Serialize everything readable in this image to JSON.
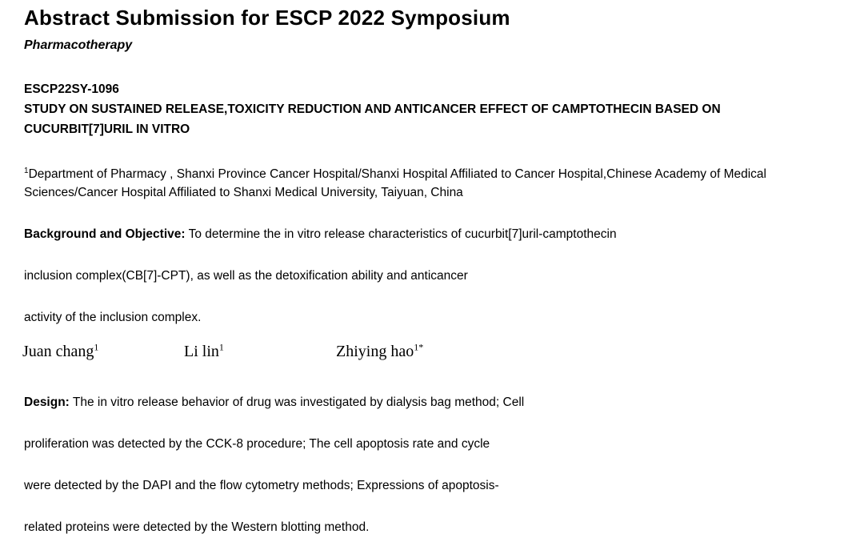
{
  "header": {
    "title": "Abstract Submission for ESCP 2022 Symposium",
    "track": "Pharmacotherapy"
  },
  "abstract": {
    "id": "ESCP22SY-1096",
    "title": "STUDY ON SUSTAINED RELEASE,TOXICITY REDUCTION AND ANTICANCER EFFECT OF CAMPTOTHECIN BASED ON CUCURBIT[7]URIL IN VITRO"
  },
  "affiliation": {
    "sup": "1",
    "text": "Department of Pharmacy , Shanxi Province Cancer Hospital/Shanxi Hospital Affiliated to Cancer Hospital,Chinese Academy of Medical Sciences/Cancer Hospital Affiliated to Shanxi Medical University, Taiyuan, China"
  },
  "background": {
    "label": "Background and Objective:",
    "lines": [
      "To determine the in vitro release characteristics of cucurbit[7]uril-camptothecin",
      "inclusion complex(CB[7]-CPT), as well as the detoxification ability and anticancer",
      "activity of the inclusion complex."
    ]
  },
  "authors": [
    {
      "name": "Juan chang",
      "sup": "1"
    },
    {
      "name": "Li lin",
      "sup": "1"
    },
    {
      "name": "Zhiying hao",
      "sup": "1*"
    }
  ],
  "design": {
    "label": "Design:",
    "lines": [
      "The in vitro release behavior of drug was investigated by dialysis bag method; Cell",
      "proliferation was detected by the CCK-8 procedure; The cell apoptosis rate and cycle",
      "were detected by the DAPI and the flow cytometry methods; Expressions of apoptosis-",
      "related proteins were detected by the Western blotting method."
    ]
  },
  "colors": {
    "text": "#000000",
    "background": "#ffffff"
  }
}
